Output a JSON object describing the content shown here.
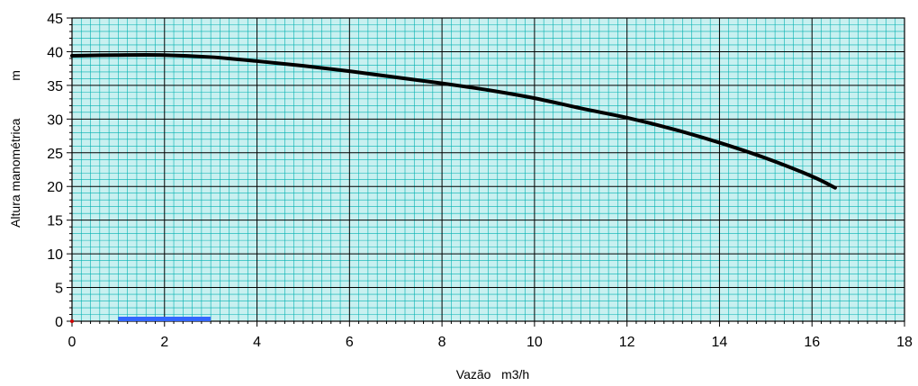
{
  "chart_data": {
    "type": "line",
    "title": "",
    "xlabel": "Vazão   m3/h",
    "ylabel": "Altura manométrica",
    "ylabel_unit": "m",
    "xlim": [
      0,
      18
    ],
    "ylim": [
      0,
      45
    ],
    "x_ticks": [
      "0",
      "2",
      "4",
      "6",
      "8",
      "10",
      "12",
      "14",
      "16",
      "18"
    ],
    "y_ticks": [
      "0",
      "5",
      "10",
      "15",
      "20",
      "25",
      "30",
      "35",
      "40",
      "45"
    ],
    "grid": true,
    "series": [
      {
        "color": "#000000",
        "x": [
          0,
          1,
          2,
          3,
          4,
          5,
          6,
          7,
          8,
          9,
          10,
          11,
          12,
          13,
          14,
          15,
          16,
          16.5
        ],
        "y": [
          39.4,
          39.5,
          39.5,
          39.2,
          38.6,
          37.9,
          37.1,
          36.2,
          35.3,
          34.3,
          33.1,
          31.6,
          30.2,
          28.5,
          26.5,
          24.2,
          21.5,
          19.8
        ]
      }
    ],
    "marker_segment": {
      "color": "#3366ff",
      "x": [
        1,
        3
      ],
      "y": 0.2
    },
    "colors": {
      "background": "#c8f0f0",
      "minor_grid": "#00b0b0",
      "major_grid": "#000000",
      "curve": "#000000"
    }
  }
}
